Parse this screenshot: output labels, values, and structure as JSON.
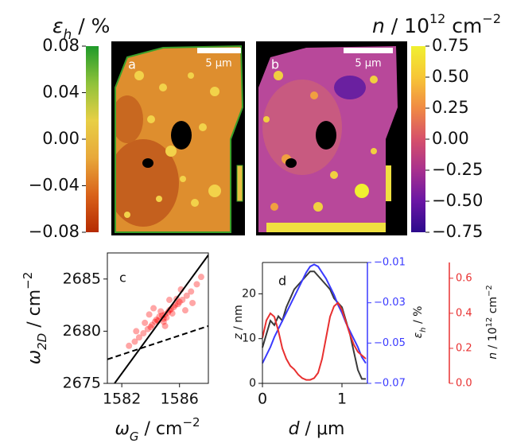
{
  "chart_data": [
    {
      "type": "colorbar",
      "title": [
        "ε",
        "h",
        " / %"
      ],
      "colors": [
        "#b52a00",
        "#d9621a",
        "#e8a83a",
        "#e8cf45",
        "#8fc23a",
        "#1f9a2a"
      ],
      "ylim": [
        -0.08,
        0.08
      ],
      "yticks": [
        {
          "value": -0.08,
          "label": "−0.08"
        },
        {
          "value": -0.04,
          "label": "−0.04"
        },
        {
          "value": 0,
          "label": "0.00"
        },
        0.04,
        0.08
      ]
    },
    {
      "type": "colorbar",
      "title": [
        "n",
        " / 10",
        "12",
        " cm",
        "−2"
      ],
      "colors": [
        "#2c0a8c",
        "#6a16a4",
        "#a8308e",
        "#d6506a",
        "#f08a44",
        "#f7c636",
        "#f0f030"
      ],
      "ylim": [
        -0.75,
        0.75
      ],
      "yticks": [
        {
          "value": -0.75,
          "label": "−0.75"
        },
        {
          "value": -0.5,
          "label": "−0.50"
        },
        {
          "value": -0.25,
          "label": "−0.25"
        },
        {
          "value": 0,
          "label": "0.00"
        },
        0.25,
        {
          "value": 0.5,
          "label": "0.50"
        },
        0.75
      ]
    },
    {
      "type": "scatter",
      "panel_label": "c",
      "xlabel": [
        "ω",
        "G",
        " / cm",
        "−2"
      ],
      "ylabel": [
        "ω",
        "2D",
        " / cm",
        "−2"
      ],
      "xlim": [
        1581,
        1588
      ],
      "xticks": [
        1582,
        1586
      ],
      "ylim": [
        2675,
        2687.5
      ],
      "yticks": [
        2675,
        2680,
        2685
      ],
      "color": "#ff0000",
      "x": [
        1584.8,
        1585.2,
        1584.5,
        1585.6,
        1584.1,
        1585.9,
        1584.9,
        1585.3,
        1583.8,
        1586.2,
        1584.6,
        1585.0,
        1585.4,
        1583.5,
        1586.5,
        1584.3,
        1585.7,
        1584.0,
        1586.0,
        1583.2,
        1586.8,
        1585.1,
        1584.7,
        1585.5,
        1582.9,
        1587.2,
        1584.4,
        1585.8,
        1583.6,
        1586.4,
        1582.5,
        1587.5,
        1584.2,
        1585.0,
        1583.0,
        1586.9,
        1584.9,
        1585.3,
        1583.9,
        1586.1
      ],
      "y": [
        2681.5,
        2681.8,
        2681.0,
        2682.3,
        2680.6,
        2682.6,
        2681.2,
        2682.0,
        2680.2,
        2683.0,
        2681.4,
        2681.6,
        2682.1,
        2679.8,
        2683.4,
        2680.9,
        2682.5,
        2680.4,
        2682.8,
        2679.4,
        2683.8,
        2681.3,
        2681.9,
        2681.7,
        2679.0,
        2684.5,
        2681.1,
        2683.1,
        2680.8,
        2682.0,
        2678.6,
        2685.2,
        2682.2,
        2680.5,
        2680.0,
        2682.7,
        2680.9,
        2683.0,
        2681.6,
        2684.0
      ],
      "lines": [
        {
          "x": [
            1581.5,
            1588
          ],
          "y": [
            2675,
            2687.3
          ],
          "style": "solid",
          "color": "#000000"
        },
        {
          "x": [
            1581,
            1588
          ],
          "y": [
            2677.3,
            2680.5
          ],
          "style": "dashed",
          "color": "#000000"
        }
      ]
    },
    {
      "type": "line",
      "panel_label": "d",
      "xlabel": [
        "d",
        " / μm"
      ],
      "ylabel": [
        "z",
        " / nm"
      ],
      "y2label": [
        "ε",
        "h",
        " / %"
      ],
      "y3label": [
        "n",
        " / 10",
        "12",
        " cm",
        "−2"
      ],
      "xlim": [
        0,
        1.32
      ],
      "xticks": [
        0,
        1
      ],
      "ylim": [
        0,
        27
      ],
      "yticks": [
        0,
        10,
        20
      ],
      "y2lim": [
        -0.07,
        -0.01
      ],
      "y2ticks": [
        {
          "value": -0.07,
          "label": "−0.07"
        },
        {
          "value": -0.05,
          "label": "−0.05"
        },
        {
          "value": -0.03,
          "label": "−0.03"
        },
        {
          "value": -0.01,
          "label": "−0.01"
        }
      ],
      "y3lim": [
        0,
        0.69
      ],
      "y3ticks": [
        {
          "value": 0,
          "label": "0.0"
        },
        0.2,
        0.4,
        0.6
      ],
      "x": [
        0,
        0.05,
        0.1,
        0.15,
        0.2,
        0.25,
        0.3,
        0.35,
        0.4,
        0.45,
        0.5,
        0.55,
        0.6,
        0.65,
        0.7,
        0.75,
        0.8,
        0.85,
        0.9,
        0.95,
        1.0,
        1.05,
        1.1,
        1.15,
        1.2,
        1.25,
        1.3
      ],
      "series": [
        {
          "color": "#3a3a3a",
          "axis": "y",
          "values": [
            8,
            11,
            14,
            13,
            15,
            14,
            17,
            19,
            21,
            22,
            23,
            24,
            25,
            25,
            24,
            23,
            22,
            21,
            19,
            18,
            17,
            14,
            11,
            7,
            3,
            1,
            1
          ]
        },
        {
          "color": "#3a3aff",
          "axis": "y2",
          "values": [
            -0.06,
            -0.056,
            -0.052,
            -0.047,
            -0.043,
            -0.039,
            -0.035,
            -0.031,
            -0.027,
            -0.023,
            -0.019,
            -0.015,
            -0.012,
            -0.011,
            -0.012,
            -0.015,
            -0.018,
            -0.022,
            -0.026,
            -0.031,
            -0.035,
            -0.04,
            -0.044,
            -0.048,
            -0.052,
            -0.057,
            -0.06
          ]
        },
        {
          "color": "#e83030",
          "axis": "y3",
          "values": [
            0.26,
            0.36,
            0.4,
            0.38,
            0.3,
            0.2,
            0.14,
            0.1,
            0.08,
            0.05,
            0.03,
            0.02,
            0.02,
            0.03,
            0.06,
            0.14,
            0.26,
            0.38,
            0.44,
            0.46,
            0.42,
            0.35,
            0.28,
            0.22,
            0.18,
            0.16,
            0.14
          ]
        }
      ]
    }
  ],
  "images": [
    {
      "label": "a",
      "scale_bar": "5 μm"
    },
    {
      "label": "b",
      "scale_bar": "5 μm"
    }
  ]
}
